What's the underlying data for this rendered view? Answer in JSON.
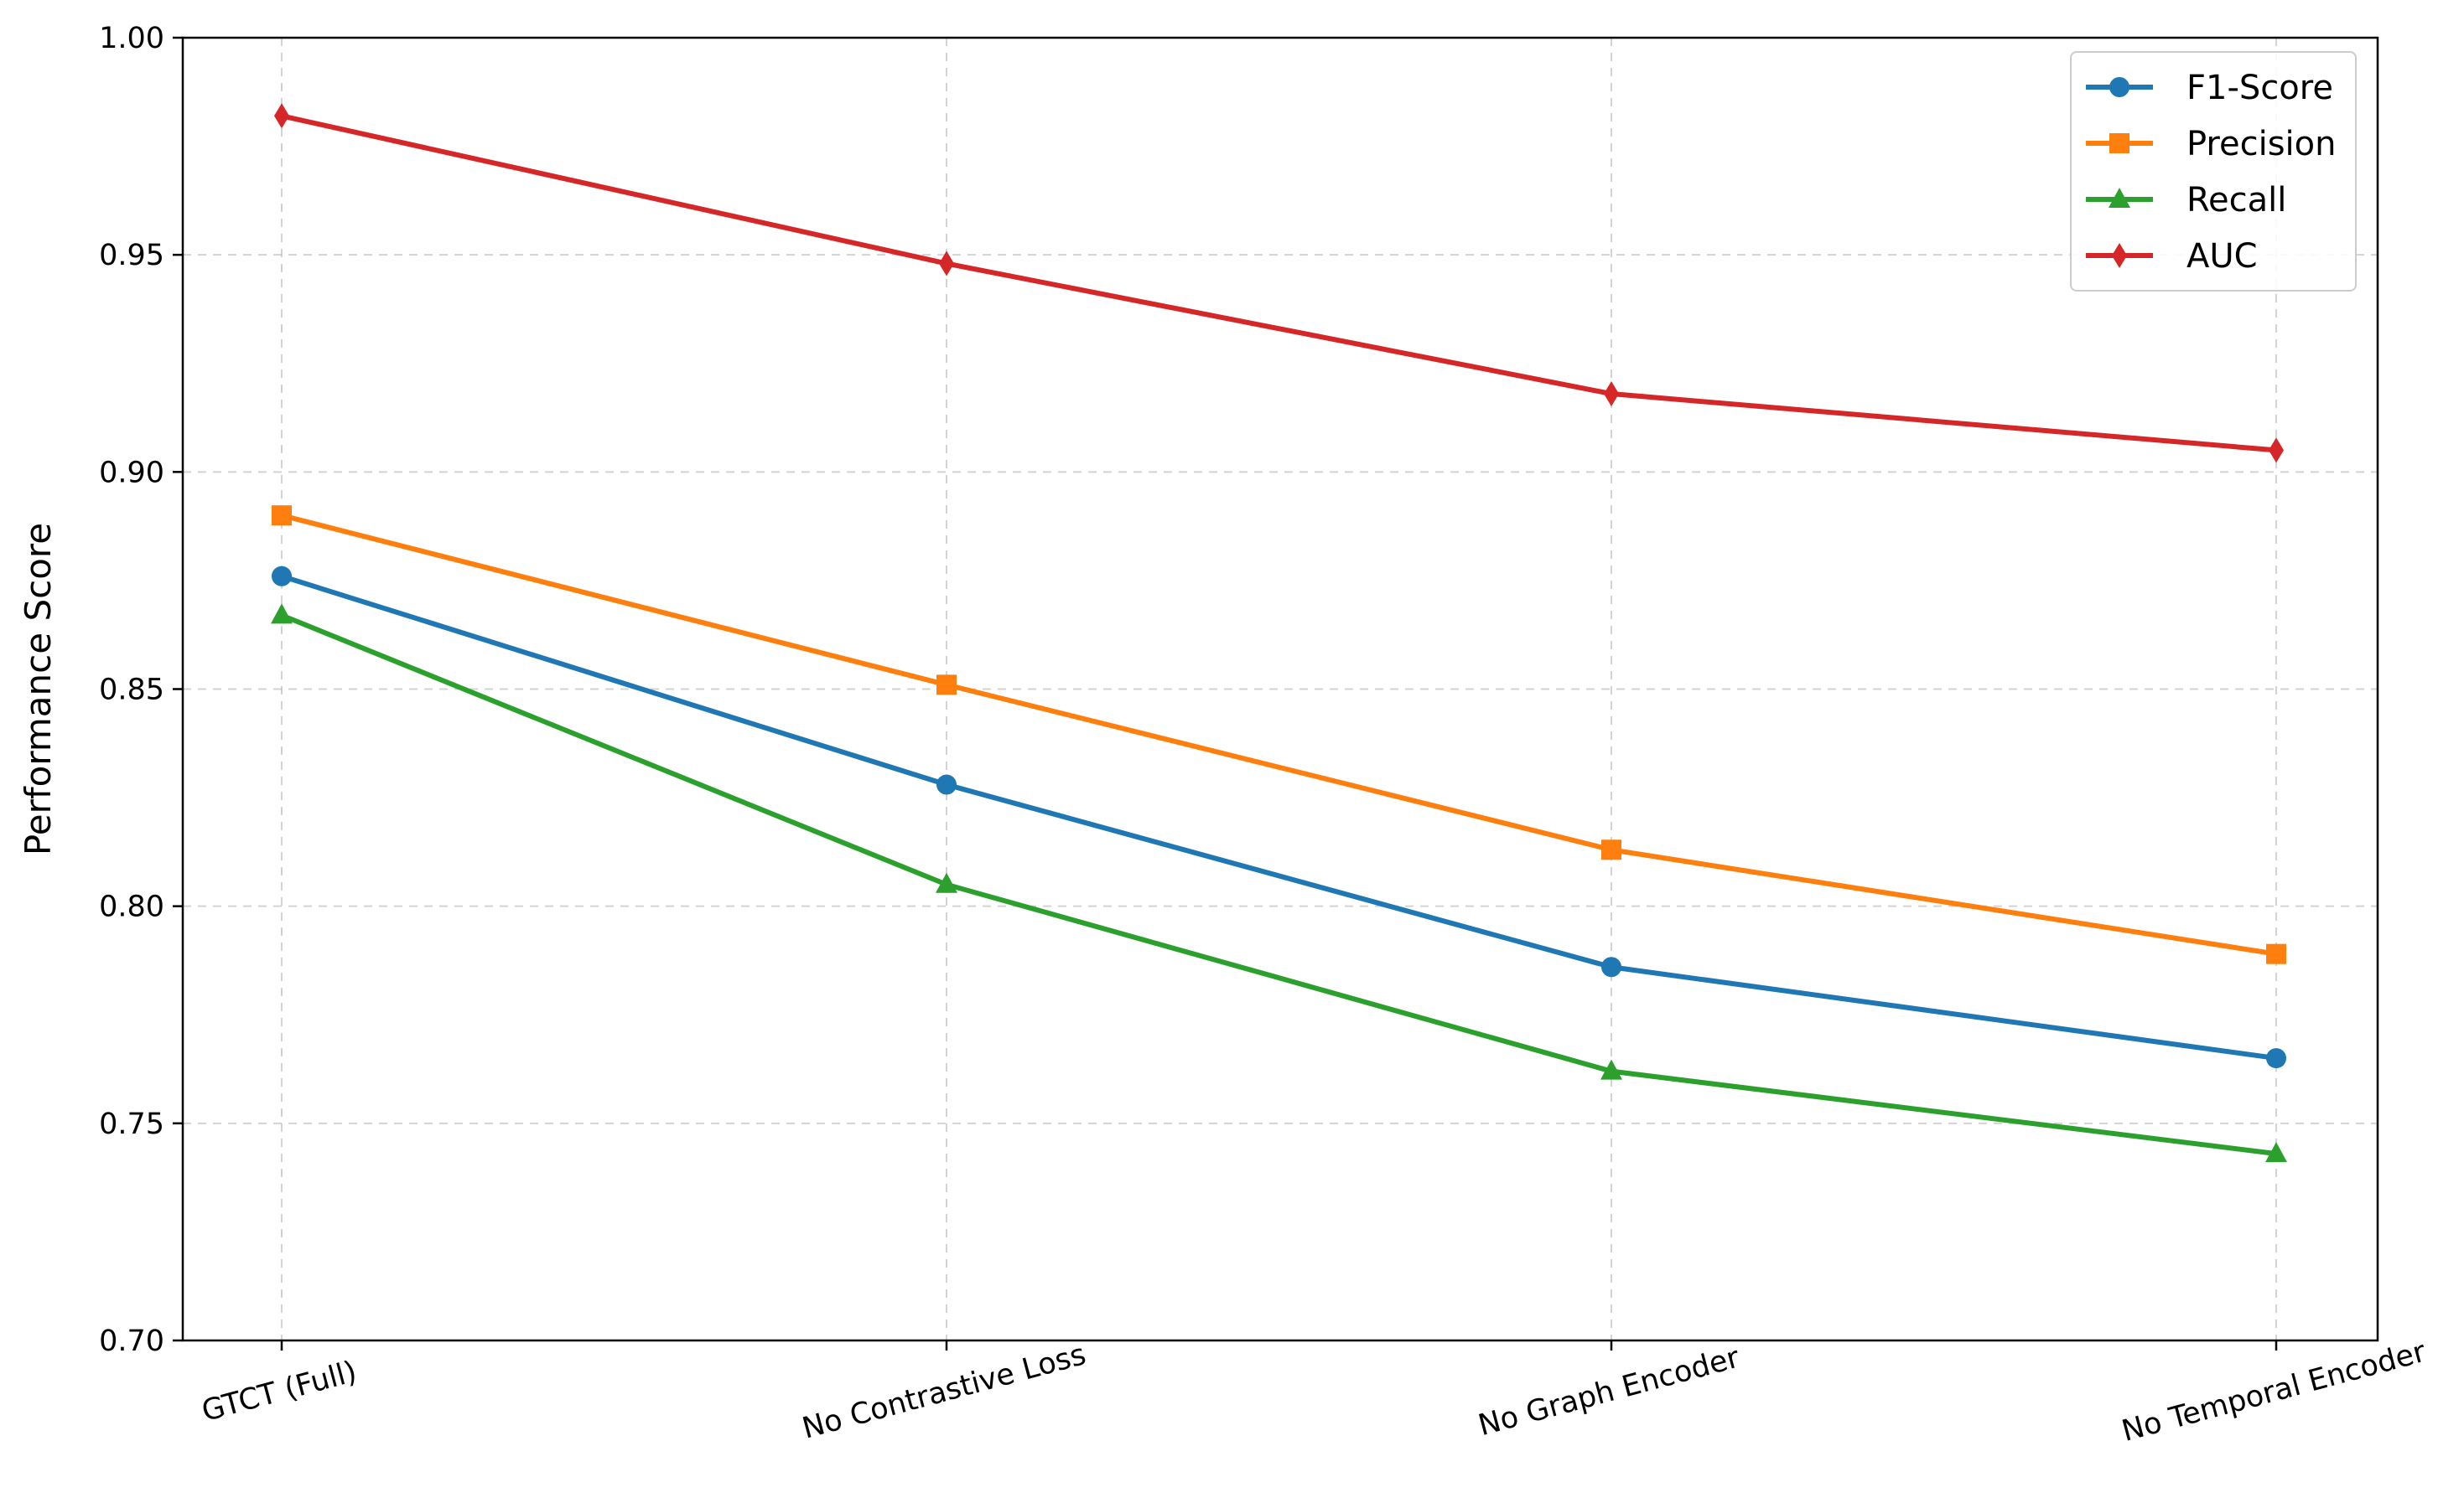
{
  "chart_data": {
    "type": "line",
    "title": "",
    "xlabel": "",
    "ylabel": "Performance Score",
    "categories": [
      "GTCT (Full)",
      "No Contrastive Loss",
      "No Graph Encoder",
      "No Temporal Encoder"
    ],
    "ylim": [
      0.7,
      1.0
    ],
    "yticks": [
      "0.70",
      "0.75",
      "0.80",
      "0.85",
      "0.90",
      "0.95",
      "1.00"
    ],
    "grid": true,
    "legend_position": "top-right",
    "series": [
      {
        "name": "F1-Score",
        "color": "#1f77b4",
        "marker": "circle",
        "values": [
          0.876,
          0.828,
          0.786,
          0.765
        ]
      },
      {
        "name": "Precision",
        "color": "#ff7f0e",
        "marker": "square",
        "values": [
          0.89,
          0.851,
          0.813,
          0.789
        ]
      },
      {
        "name": "Recall",
        "color": "#2ca02c",
        "marker": "triangle",
        "values": [
          0.867,
          0.805,
          0.762,
          0.743
        ]
      },
      {
        "name": "AUC",
        "color": "#d62728",
        "marker": "diamond",
        "values": [
          0.982,
          0.948,
          0.918,
          0.905
        ]
      }
    ]
  }
}
